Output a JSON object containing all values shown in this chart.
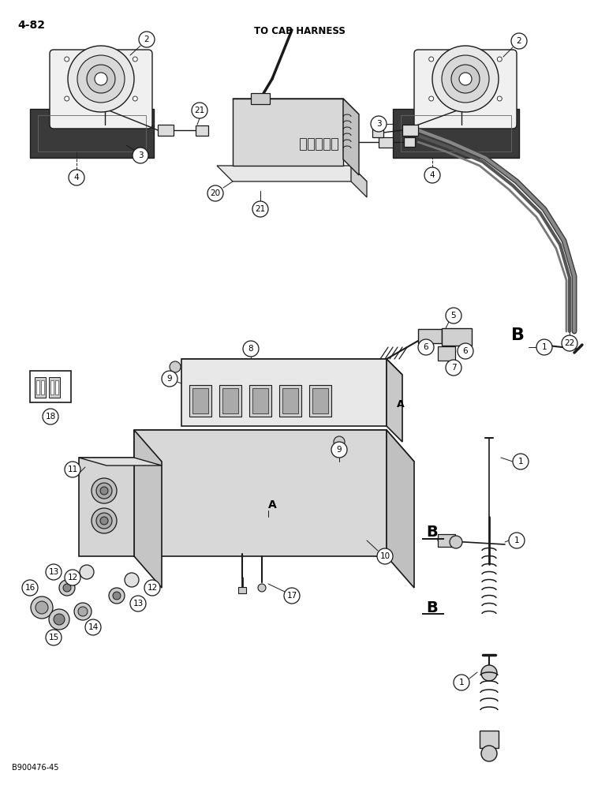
{
  "page_label": "4-82",
  "image_code": "B900476-45",
  "bg_color": "#ffffff",
  "line_color": "#1a1a1a",
  "annotation_color": "#000000",
  "title_text": "TO CAB HARNESS",
  "label_B_text": "B",
  "label_A_text": "A",
  "figsize": [
    7.72,
    10.0
  ],
  "dpi": 100
}
